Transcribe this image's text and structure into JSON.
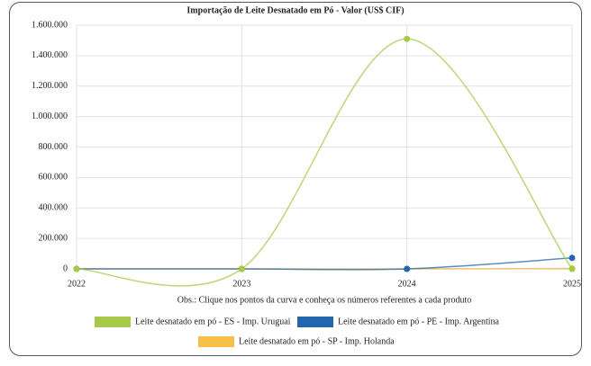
{
  "chart_data": {
    "type": "line",
    "title": "Importação de Leite Desnatado em Pó - Valor (US$ CIF)",
    "note": "Obs.: Clique nos pontos da curva e conheça os números referentes a cada produto",
    "x": [
      2022,
      2023,
      2024,
      2025
    ],
    "xlim": [
      2022,
      2025
    ],
    "xticks": [
      2022,
      2023,
      2024,
      2025
    ],
    "ylim": [
      0,
      1600000
    ],
    "yticks": [
      0,
      {
        "value": 200000,
        "label": "200.000"
      },
      {
        "value": 400000,
        "label": "400.000"
      },
      {
        "value": 600000,
        "label": "600.000"
      },
      {
        "value": 800000,
        "label": "800.000"
      },
      {
        "value": 1000000,
        "label": "1.000.000"
      },
      {
        "value": 1200000,
        "label": "1.200.000"
      },
      {
        "value": 1400000,
        "label": "1.400.000"
      },
      {
        "value": 1600000,
        "label": "1.600.000"
      }
    ],
    "grid": true,
    "series": [
      {
        "name": "Leite desnatado em pó - ES - Imp. Uruguai",
        "color": "#a6c94a",
        "values": [
          0,
          0,
          1510000,
          0
        ]
      },
      {
        "name": "Leite desnatado em pó - PE - Imp. Argentina",
        "color": "#2466ab",
        "values": [
          0,
          0,
          0,
          72000
        ]
      },
      {
        "name": "Leite desnatado em pó - SP - Imp. Holanda",
        "color": "#f6bf45",
        "values": [
          0,
          0,
          0,
          3000
        ]
      }
    ]
  }
}
